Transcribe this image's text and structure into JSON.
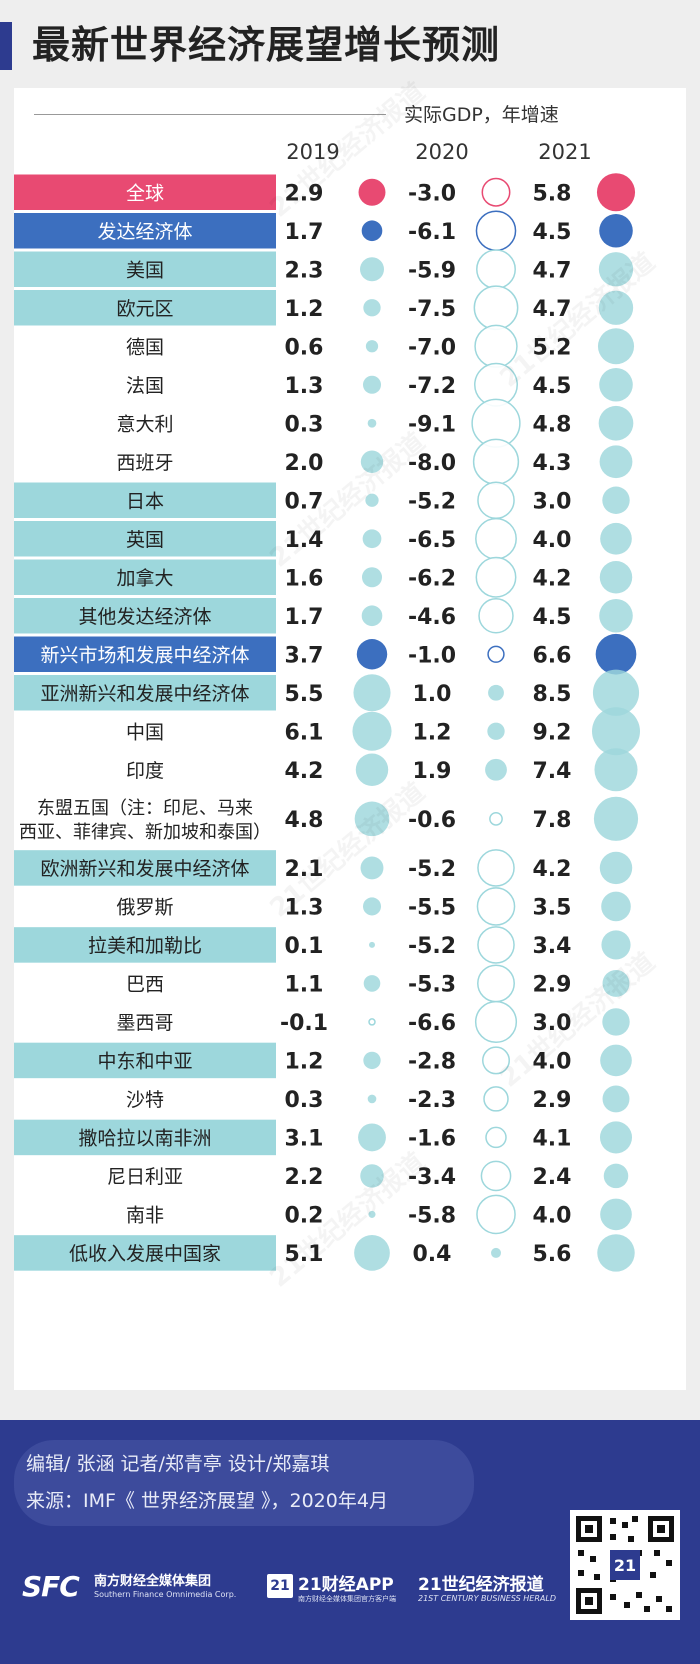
{
  "title": "最新世界经济展望增长预测",
  "colors": {
    "world": "#e84a72",
    "group": "#3c6fbf",
    "region": "#9dd7dc",
    "country_bg": "#ffffff",
    "bubble_world_fill": "#e84a72",
    "bubble_group_fill": "#3c6fbf",
    "bubble_default_fill": "#9dd7dc",
    "text": "#222222"
  },
  "chart_data": {
    "type": "bubble-table",
    "unit": "实际GDP，年增速",
    "years": [
      "2019",
      "2020",
      "2021"
    ],
    "rows": [
      {
        "label": "全球",
        "kind": "world",
        "values": [
          "2.9",
          "-3.0",
          "5.8"
        ]
      },
      {
        "label": "发达经济体",
        "kind": "group",
        "values": [
          "1.7",
          "-6.1",
          "4.5"
        ]
      },
      {
        "label": "美国",
        "kind": "region",
        "values": [
          "2.3",
          "-5.9",
          "4.7"
        ]
      },
      {
        "label": "欧元区",
        "kind": "region",
        "values": [
          "1.2",
          "-7.5",
          "4.7"
        ]
      },
      {
        "label": "德国",
        "kind": "country",
        "values": [
          "0.6",
          "-7.0",
          "5.2"
        ]
      },
      {
        "label": "法国",
        "kind": "country",
        "values": [
          "1.3",
          "-7.2",
          "4.5"
        ]
      },
      {
        "label": "意大利",
        "kind": "country",
        "values": [
          "0.3",
          "-9.1",
          "4.8"
        ]
      },
      {
        "label": "西班牙",
        "kind": "country",
        "values": [
          "2.0",
          "-8.0",
          "4.3"
        ]
      },
      {
        "label": "日本",
        "kind": "region",
        "values": [
          "0.7",
          "-5.2",
          "3.0"
        ]
      },
      {
        "label": "英国",
        "kind": "region",
        "values": [
          "1.4",
          "-6.5",
          "4.0"
        ]
      },
      {
        "label": "加拿大",
        "kind": "region",
        "values": [
          "1.6",
          "-6.2",
          "4.2"
        ]
      },
      {
        "label": "其他发达经济体",
        "kind": "region",
        "values": [
          "1.7",
          "-4.6",
          "4.5"
        ]
      },
      {
        "label": "新兴市场和发展中经济体",
        "kind": "group",
        "values": [
          "3.7",
          "-1.0",
          "6.6"
        ]
      },
      {
        "label": "亚洲新兴和发展中经济体",
        "kind": "region",
        "values": [
          "5.5",
          "1.0",
          "8.5"
        ]
      },
      {
        "label": "中国",
        "kind": "country",
        "values": [
          "6.1",
          "1.2",
          "9.2"
        ]
      },
      {
        "label": "印度",
        "kind": "country",
        "values": [
          "4.2",
          "1.9",
          "7.4"
        ]
      },
      {
        "label": "东盟五国（注：印尼、马来",
        "label2": "西亚、菲律宾、新加坡和泰国）",
        "kind": "country",
        "values": [
          "4.8",
          "-0.6",
          "7.8"
        ]
      },
      {
        "label": "欧洲新兴和发展中经济体",
        "kind": "region",
        "values": [
          "2.1",
          "-5.2",
          "4.2"
        ]
      },
      {
        "label": "俄罗斯",
        "kind": "country",
        "values": [
          "1.3",
          "-5.5",
          "3.5"
        ]
      },
      {
        "label": "拉美和加勒比",
        "kind": "region",
        "values": [
          "0.1",
          "-5.2",
          "3.4"
        ]
      },
      {
        "label": "巴西",
        "kind": "country",
        "values": [
          "1.1",
          "-5.3",
          "2.9"
        ]
      },
      {
        "label": "墨西哥",
        "kind": "country",
        "values": [
          "-0.1",
          "-6.6",
          "3.0"
        ]
      },
      {
        "label": "中东和中亚",
        "kind": "region",
        "values": [
          "1.2",
          "-2.8",
          "4.0"
        ]
      },
      {
        "label": "沙特",
        "kind": "country",
        "values": [
          "0.3",
          "-2.3",
          "2.9"
        ]
      },
      {
        "label": "撒哈拉以南非洲",
        "kind": "region",
        "values": [
          "3.1",
          "-1.6",
          "4.1"
        ]
      },
      {
        "label": "尼日利亚",
        "kind": "country",
        "values": [
          "2.2",
          "-3.4",
          "2.4"
        ]
      },
      {
        "label": "南非",
        "kind": "country",
        "values": [
          "0.2",
          "-5.8",
          "4.0"
        ]
      },
      {
        "label": "低收入发展中国家",
        "kind": "region",
        "values": [
          "5.1",
          "0.4",
          "5.6"
        ]
      }
    ]
  },
  "footer": {
    "credits": "编辑/ 张涵    记者/郑青亭    设计/郑嘉琪",
    "source": "来源：IMF《 世界经济展望 》，2020年4月",
    "logo_sfc": "SFC",
    "logo_sfc_cn": "南方财经全媒体集团",
    "logo_sfc_en": "Southern Finance Omnimedia Corp.",
    "logo_21": "21",
    "logo_app": "21财经APP",
    "logo_app_sub": "南方财经全媒体集团官方客户端",
    "logo_herald": "21世纪经济报道",
    "logo_herald_en": "21ST CENTURY BUSINESS HERALD"
  },
  "watermark_text": "21世纪经济报道"
}
